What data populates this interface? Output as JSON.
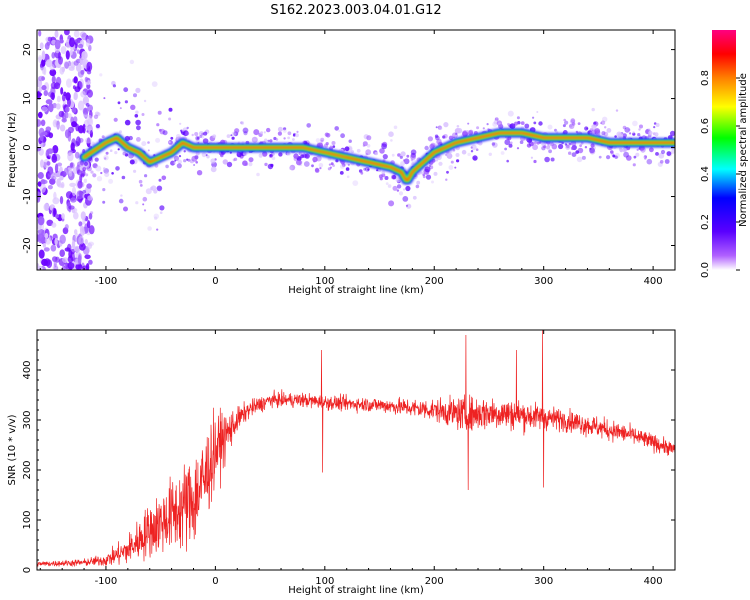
{
  "figure": {
    "title": "S162.2023.003.04.01.G12"
  },
  "chart_data": [
    {
      "type": "heatmap",
      "xlabel": "Height of straight line (km)",
      "ylabel": "Frequency (Hz)",
      "xlim": [
        -163,
        420
      ],
      "ylim": [
        -25,
        24
      ],
      "xticks": [
        -100,
        0,
        100,
        200,
        300,
        400
      ],
      "yticks": [
        -20,
        -10,
        0,
        10,
        20
      ],
      "ridge": {
        "x": [
          -120,
          -100,
          -90,
          -80,
          -70,
          -60,
          -50,
          -40,
          -30,
          -20,
          0,
          50,
          80,
          100,
          120,
          140,
          160,
          170,
          175,
          180,
          200,
          220,
          240,
          260,
          280,
          300,
          320,
          340,
          360,
          380,
          400,
          420
        ],
        "y": [
          -2,
          1,
          2,
          0,
          -1,
          -3,
          -2,
          -1,
          1,
          0,
          0,
          0,
          0,
          -1,
          -2,
          -3,
          -4,
          -5,
          -7,
          -5,
          -1,
          1,
          2,
          3,
          3,
          2,
          2,
          2,
          1,
          1,
          1,
          1
        ]
      },
      "colorbar": {
        "label": "Normalized spectral amplitude",
        "range": [
          0,
          1
        ],
        "ticks": [
          "0.0",
          "0.2",
          "0.4",
          "0.6",
          "0.8"
        ],
        "colors": [
          "#ffffff",
          "#7b00ff",
          "#0000ff",
          "#00ffff",
          "#00ff00",
          "#ffff00",
          "#ff8000",
          "#ff0000",
          "#ff0080"
        ]
      }
    },
    {
      "type": "line",
      "xlabel": "Height of straight line (km)",
      "ylabel": "SNR (10 * v/v)",
      "xlim": [
        -163,
        420
      ],
      "ylim": [
        0,
        480
      ],
      "xticks": [
        -100,
        0,
        100,
        200,
        300,
        400
      ],
      "yticks": [
        0,
        100,
        200,
        300,
        400
      ],
      "color": "#ee2222",
      "trend": {
        "x": [
          -163,
          -120,
          -100,
          -80,
          -60,
          -40,
          -20,
          -10,
          0,
          10,
          20,
          30,
          50,
          80,
          100,
          150,
          200,
          230,
          250,
          280,
          300,
          320,
          350,
          380,
          400,
          420
        ],
        "y": [
          12,
          15,
          20,
          40,
          80,
          110,
          140,
          180,
          240,
          270,
          300,
          320,
          340,
          340,
          335,
          330,
          320,
          310,
          315,
          310,
          305,
          300,
          285,
          270,
          255,
          240
        ]
      },
      "noise": {
        "x": [
          -163,
          -120,
          -100,
          -80,
          -60,
          -40,
          -20,
          -10,
          0,
          10,
          20,
          30,
          50,
          80,
          100,
          150,
          200,
          230,
          250,
          280,
          300,
          320,
          350,
          380,
          400,
          420
        ],
        "amp": [
          4,
          6,
          10,
          25,
          45,
          60,
          80,
          80,
          60,
          40,
          20,
          15,
          12,
          12,
          12,
          12,
          18,
          30,
          28,
          25,
          20,
          18,
          18,
          15,
          14,
          12
        ]
      },
      "spikes": [
        {
          "x": 97,
          "y": 440
        },
        {
          "x": 98,
          "y": 195
        },
        {
          "x": 229,
          "y": 470
        },
        {
          "x": 231,
          "y": 160
        },
        {
          "x": 275,
          "y": 440
        },
        {
          "x": 299,
          "y": 480
        },
        {
          "x": 300,
          "y": 165
        }
      ]
    }
  ]
}
